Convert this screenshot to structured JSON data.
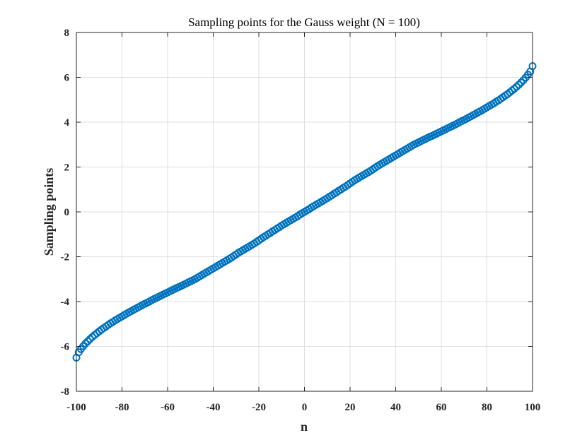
{
  "chart_data": {
    "type": "scatter",
    "title": "Sampling points for the Gauss weight (N = 100)",
    "xlabel": "n",
    "ylabel": "Sampling points",
    "xlim": [
      -100,
      100
    ],
    "ylim": [
      -8,
      8
    ],
    "xticks": [
      -100,
      -80,
      -60,
      -40,
      -20,
      0,
      20,
      40,
      60,
      80,
      100
    ],
    "yticks": [
      -8,
      -6,
      -4,
      -2,
      0,
      2,
      4,
      6,
      8
    ],
    "grid": true,
    "marker": "circle",
    "color": "#0072BD",
    "series": [
      {
        "x": [
          -100,
          -99,
          -98,
          -97,
          -96,
          -95,
          -94,
          -93,
          -92,
          -91,
          -90,
          -89,
          -88,
          -87,
          -86,
          -85,
          -84,
          -83,
          -82,
          -81,
          -80,
          -79,
          -78,
          -77,
          -76,
          -75,
          -74,
          -73,
          -72,
          -71,
          -70,
          -69,
          -68,
          -67,
          -66,
          -65,
          -64,
          -63,
          -62,
          -61,
          -60,
          -59,
          -58,
          -57,
          -56,
          -55,
          -54,
          -53,
          -52,
          -51,
          -50,
          -49,
          -48,
          -47,
          -46,
          -45,
          -44,
          -43,
          -42,
          -41,
          -40,
          -39,
          -38,
          -37,
          -36,
          -35,
          -34,
          -33,
          -32,
          -31,
          -30,
          -29,
          -28,
          -27,
          -26,
          -25,
          -24,
          -23,
          -22,
          -21,
          -20,
          -19,
          -18,
          -17,
          -16,
          -15,
          -14,
          -13,
          -12,
          -11,
          -10,
          -9,
          -8,
          -7,
          -6,
          -5,
          -4,
          -3,
          -2,
          -1,
          0,
          1,
          2,
          3,
          4,
          5,
          6,
          7,
          8,
          9,
          10,
          11,
          12,
          13,
          14,
          15,
          16,
          17,
          18,
          19,
          20,
          21,
          22,
          23,
          24,
          25,
          26,
          27,
          28,
          29,
          30,
          31,
          32,
          33,
          34,
          35,
          36,
          37,
          38,
          39,
          40,
          41,
          42,
          43,
          44,
          45,
          46,
          47,
          48,
          49,
          50,
          51,
          52,
          53,
          54,
          55,
          56,
          57,
          58,
          59,
          60,
          61,
          62,
          63,
          64,
          65,
          66,
          67,
          68,
          69,
          70,
          71,
          72,
          73,
          74,
          75,
          76,
          77,
          78,
          79,
          80,
          81,
          82,
          83,
          84,
          85,
          86,
          87,
          88,
          89,
          90,
          91,
          92,
          93,
          94,
          95,
          96,
          97,
          98,
          99,
          100
        ],
        "y": [
          -6.5,
          -6.26,
          -6.12,
          -5.99,
          -5.87,
          -5.77,
          -5.67,
          -5.58,
          -5.49,
          -5.41,
          -5.33,
          -5.25,
          -5.18,
          -5.11,
          -5.04,
          -4.97,
          -4.91,
          -4.84,
          -4.78,
          -4.72,
          -4.66,
          -4.6,
          -4.54,
          -4.48,
          -4.43,
          -4.37,
          -4.32,
          -4.26,
          -4.21,
          -4.15,
          -4.1,
          -4.05,
          -4.0,
          -3.94,
          -3.89,
          -3.84,
          -3.79,
          -3.74,
          -3.69,
          -3.64,
          -3.59,
          -3.54,
          -3.49,
          -3.44,
          -3.39,
          -3.35,
          -3.3,
          -3.25,
          -3.2,
          -3.15,
          -3.1,
          -3.05,
          -3.0,
          -2.94,
          -2.88,
          -2.82,
          -2.76,
          -2.7,
          -2.64,
          -2.58,
          -2.52,
          -2.46,
          -2.4,
          -2.34,
          -2.28,
          -2.22,
          -2.16,
          -2.1,
          -2.04,
          -1.97,
          -1.9,
          -1.83,
          -1.77,
          -1.71,
          -1.65,
          -1.59,
          -1.53,
          -1.47,
          -1.41,
          -1.34,
          -1.27,
          -1.2,
          -1.13,
          -1.07,
          -1.0,
          -0.94,
          -0.87,
          -0.81,
          -0.74,
          -0.68,
          -0.61,
          -0.55,
          -0.49,
          -0.43,
          -0.37,
          -0.31,
          -0.25,
          -0.19,
          -0.12,
          -0.06,
          0.0,
          0.06,
          0.12,
          0.19,
          0.25,
          0.31,
          0.37,
          0.43,
          0.49,
          0.55,
          0.61,
          0.68,
          0.74,
          0.81,
          0.87,
          0.94,
          1.0,
          1.07,
          1.13,
          1.2,
          1.27,
          1.34,
          1.41,
          1.47,
          1.53,
          1.59,
          1.65,
          1.71,
          1.77,
          1.83,
          1.9,
          1.97,
          2.04,
          2.1,
          2.16,
          2.22,
          2.28,
          2.34,
          2.4,
          2.46,
          2.52,
          2.58,
          2.64,
          2.7,
          2.76,
          2.82,
          2.88,
          2.94,
          3.0,
          3.05,
          3.1,
          3.15,
          3.2,
          3.25,
          3.3,
          3.35,
          3.39,
          3.44,
          3.49,
          3.54,
          3.59,
          3.64,
          3.69,
          3.74,
          3.79,
          3.84,
          3.89,
          3.94,
          4.0,
          4.05,
          4.1,
          4.15,
          4.21,
          4.26,
          4.32,
          4.37,
          4.43,
          4.48,
          4.54,
          4.6,
          4.66,
          4.72,
          4.78,
          4.84,
          4.91,
          4.97,
          5.04,
          5.11,
          5.18,
          5.25,
          5.33,
          5.41,
          5.49,
          5.58,
          5.67,
          5.77,
          5.87,
          5.99,
          6.12,
          6.26,
          6.5
        ]
      }
    ]
  }
}
